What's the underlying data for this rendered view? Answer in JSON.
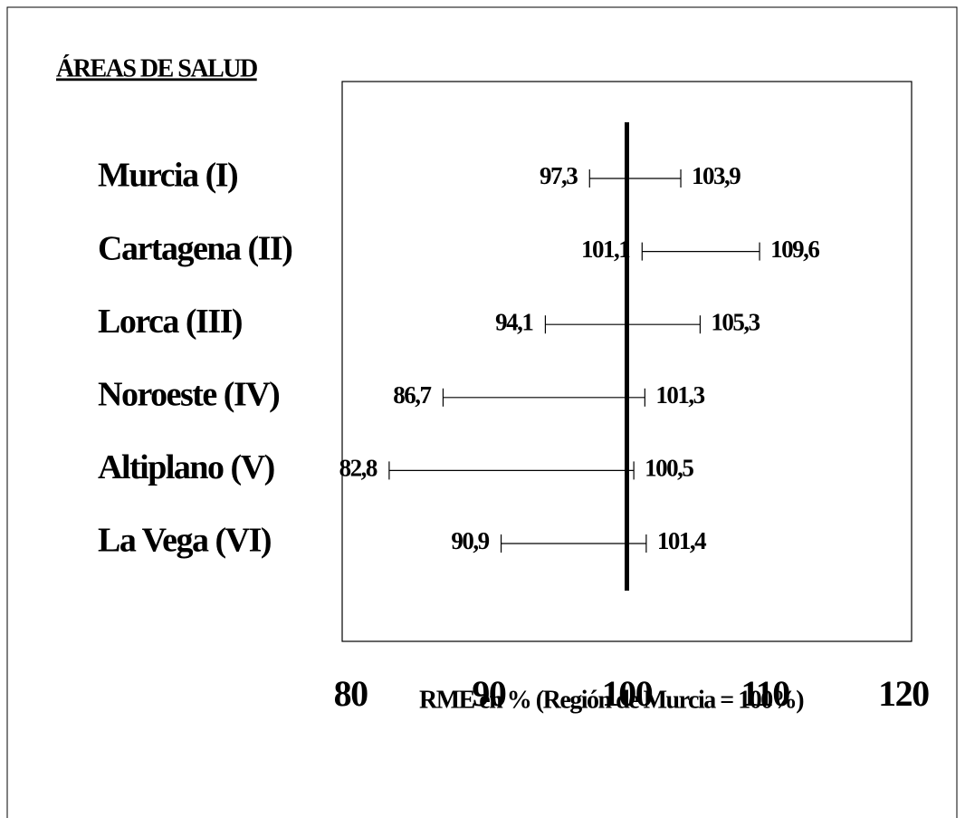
{
  "chart_data": {
    "type": "interval",
    "title": "ÁREAS DE SALUD",
    "xlabel": "RME en % (Región de Murcia = 100%)",
    "categories": [
      "Murcia (I)",
      "Cartagena (II)",
      "Lorca (III)",
      "Noroeste (IV)",
      "Altiplano (V)",
      "La Vega (VI)"
    ],
    "low": [
      97.3,
      101.1,
      94.1,
      86.7,
      82.8,
      90.9
    ],
    "low_labels": [
      "97,3",
      "101,1",
      "94,1",
      "86,7",
      "82,8",
      "90,9"
    ],
    "high": [
      103.9,
      109.6,
      105.3,
      101.3,
      100.5,
      101.4
    ],
    "high_labels": [
      "103,9",
      "109,6",
      "105,3",
      "101,3",
      "100,5",
      "101,4"
    ],
    "reference_line": 100,
    "color": "#000000",
    "xlim": [
      79.4,
      120.6
    ],
    "xticks": [
      80,
      90,
      100,
      110,
      120
    ]
  }
}
